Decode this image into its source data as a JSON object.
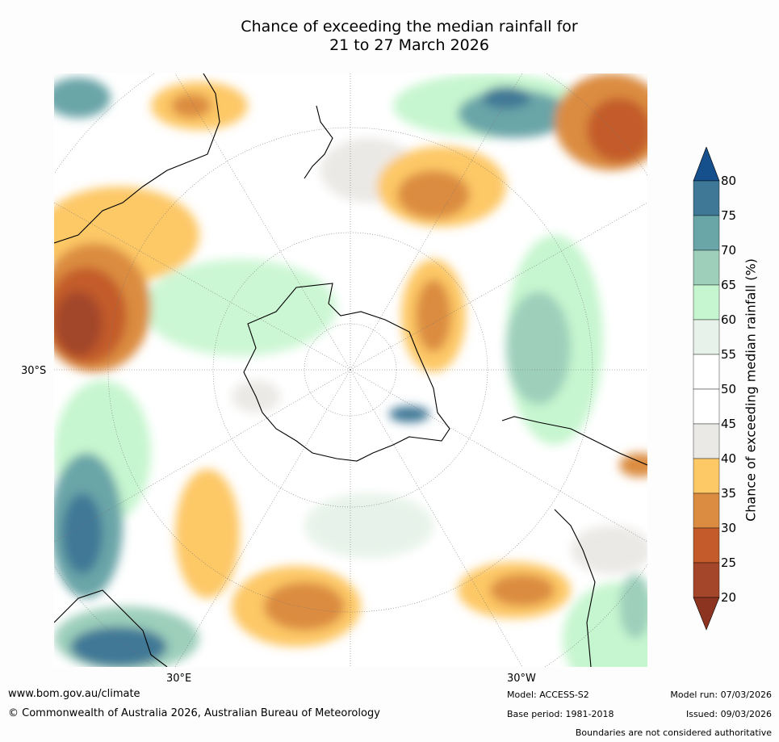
{
  "title": {
    "line1": "Chance of exceeding the median rainfall for",
    "line2": "21 to 27 March 2026"
  },
  "map": {
    "type": "polar-stereographic",
    "hemisphere": "south",
    "lat_labels": [
      "30°S"
    ],
    "lon_labels": {
      "left": "30°E",
      "right": "30°W"
    }
  },
  "colorbar": {
    "title": "Chance of exceeding median rainfall (%)",
    "ticks": [
      "80",
      "75",
      "70",
      "65",
      "60",
      "55",
      "50",
      "45",
      "40",
      "35",
      "30",
      "25",
      "20"
    ],
    "colors": {
      "above80": "#154f8c",
      "75-80": "#3f7896",
      "70-75": "#6aa5a8",
      "65-70": "#9dcfbb",
      "60-65": "#c6f6cf",
      "55-60": "#e7f3ea",
      "50-55": "#ffffff",
      "45-50": "#ffffff",
      "40-45": "#ebe9e6",
      "35-40": "#fdc866",
      "30-35": "#db8c40",
      "25-30": "#c35b2b",
      "20-25": "#a3462a",
      "below20": "#8d3420"
    }
  },
  "footer": {
    "website": "www.bom.gov.au/climate",
    "copyright": "© Commonwealth of Australia 2026, Australian Bureau of Meteorology",
    "model": "Model: ACCESS-S2",
    "base_period": "Base period: 1981-2018",
    "model_run": "Model run: 07/03/2026",
    "issued": "Issued: 09/03/2026",
    "disclaimer": "Boundaries are not considered authoritative"
  }
}
